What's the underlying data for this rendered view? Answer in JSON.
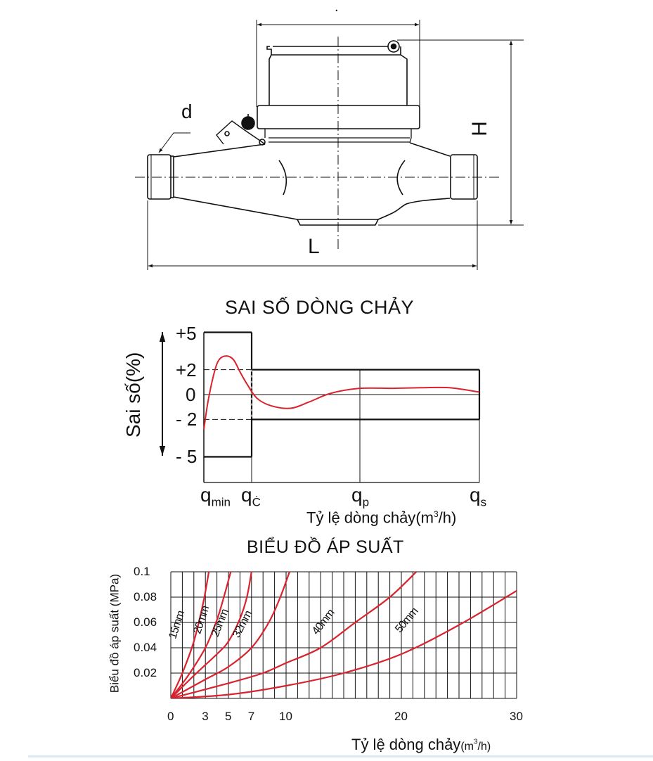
{
  "drawing": {
    "label_d": "d",
    "label_h": "H",
    "label_l": "L",
    "top_dot": "."
  },
  "error_chart": {
    "title": "SAI SỐ DÒNG CHẢY",
    "ylabel": "Sai số(%)",
    "y_ticks": [
      "+5",
      "+2",
      "0",
      "- 2",
      "- 5"
    ],
    "x_ticks": [
      {
        "main": "q",
        "sub": "min"
      },
      {
        "main": "q",
        "sub": "Ċ"
      },
      {
        "main": "q",
        "sub": "p"
      },
      {
        "main": "q",
        "sub": "s"
      }
    ],
    "xlabel": "Tỷ lệ dòng chảy",
    "xunit_a": "(m",
    "xunit_sup": "3",
    "xunit_b": "/h)"
  },
  "pressure_chart": {
    "title": "BIỂU ĐỒ ÁP SUẤT",
    "ylabel": "Biểu đồ áp suất (MPa)",
    "y_ticks": [
      "0.1",
      "0.08",
      "0.06",
      "0.04",
      "0.02"
    ],
    "x_ticks": [
      "0",
      "3",
      "5",
      "7",
      "10",
      "20",
      "30"
    ],
    "xlabel": "Tỷ lệ dòng chảy",
    "xunit_a": "(m",
    "xunit_sup": "3",
    "xunit_b": "/h)"
  },
  "colors": {
    "curve": "#d9232e",
    "line": "#111111"
  },
  "chart_data": [
    {
      "type": "line",
      "title": "SAI SỐ DÒNG CHẢY",
      "ylabel": "Sai số(%)",
      "xlabel": "Tỷ lệ dòng chảy(m³/h)",
      "x_categories": [
        "qmin",
        "qĊ",
        "qp",
        "qs"
      ],
      "ylim": [
        -5,
        5
      ],
      "limits": [
        {
          "from": "qmin",
          "to": "qĊ",
          "upper": 5,
          "lower": -5
        },
        {
          "from": "qĊ",
          "to": "qs",
          "upper": 2,
          "lower": -2
        }
      ],
      "series": [
        {
          "x_index": [
            0,
            0.09,
            0.22,
            0.32,
            0.47,
            0.62,
            0.76,
            0.91,
            1.05,
            1.18,
            1.36,
            1.53,
            1.73,
            2,
            2.28,
            2.52,
            2.75,
            3
          ],
          "values": [
            -2.8,
            -0.5,
            1.8,
            2.8,
            3.1,
            2.8,
            1.8,
            0.8,
            -0.3,
            -0.9,
            -1.1,
            -0.6,
            0.1,
            0.5,
            0.5,
            0.55,
            0.55,
            0.2
          ]
        }
      ]
    },
    {
      "type": "line",
      "title": "BIỂU ĐỒ ÁP SUẤT",
      "ylabel": "Biểu đồ áp suất (MPa)",
      "xlabel": "Tỷ lệ dòng chảy(m³/h)",
      "xlim": [
        0,
        30
      ],
      "ylim": [
        0,
        0.1
      ],
      "grid": true,
      "series": [
        {
          "name": "15mm",
          "x": [
            0,
            1,
            2,
            2.8,
            3.3
          ],
          "y": [
            0,
            0.02,
            0.045,
            0.075,
            0.1
          ]
        },
        {
          "name": "20mm",
          "x": [
            0,
            1.5,
            3,
            4,
            4.6,
            5.2
          ],
          "y": [
            0,
            0.018,
            0.04,
            0.062,
            0.08,
            0.1
          ]
        },
        {
          "name": "25mm",
          "x": [
            0,
            2,
            4,
            5,
            6,
            6.6,
            7
          ],
          "y": [
            0,
            0.018,
            0.035,
            0.045,
            0.063,
            0.08,
            0.1
          ]
        },
        {
          "name": "32mm",
          "x": [
            0,
            3,
            5,
            7,
            8.5,
            9.5,
            10.3
          ],
          "y": [
            0,
            0.015,
            0.025,
            0.04,
            0.06,
            0.08,
            0.1
          ]
        },
        {
          "name": "40mm",
          "x": [
            0,
            5,
            8,
            10,
            13,
            16,
            19,
            21.3
          ],
          "y": [
            0,
            0.012,
            0.02,
            0.028,
            0.04,
            0.06,
            0.08,
            0.1
          ]
        },
        {
          "name": "50mm",
          "x": [
            0,
            5,
            10,
            15,
            20,
            25,
            30
          ],
          "y": [
            0,
            0.003,
            0.01,
            0.02,
            0.035,
            0.058,
            0.085
          ]
        }
      ]
    }
  ]
}
